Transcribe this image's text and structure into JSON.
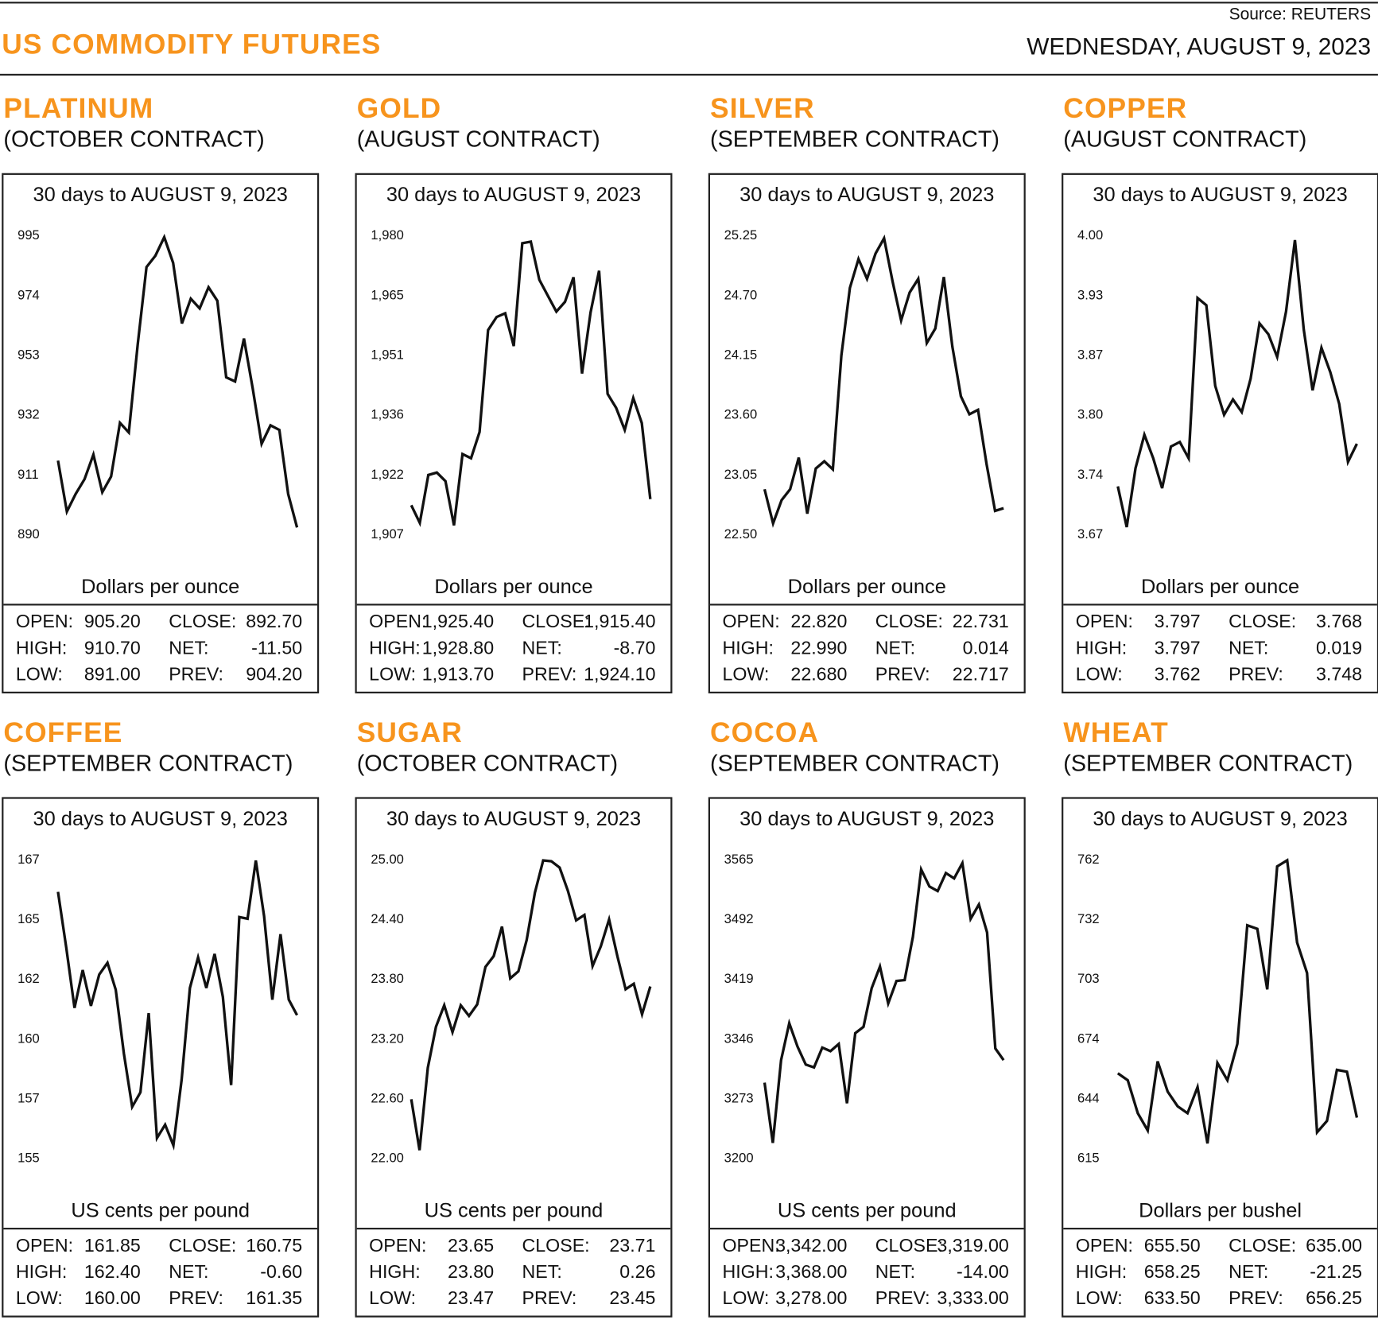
{
  "header": {
    "title": "US COMMODITY FUTURES",
    "source": "Source: REUTERS",
    "date": "WEDNESDAY, AUGUST 9, 2023"
  },
  "labels": {
    "open": "OPEN:",
    "high": "HIGH:",
    "low": "LOW:",
    "close": "CLOSE:",
    "net": "NET:",
    "prev": "PREV:"
  },
  "commodities": [
    {
      "name": "PLATINUM",
      "contract": "(OCTOBER CONTRACT)",
      "stats": {
        "open": "905.20",
        "high": "910.70",
        "low": "891.00",
        "close": "892.70",
        "net": "-11.50",
        "prev": "904.20"
      }
    },
    {
      "name": "GOLD",
      "contract": "(AUGUST CONTRACT)",
      "stats": {
        "open": "1,925.40",
        "high": "1,928.80",
        "low": "1,913.70",
        "close": "1,915.40",
        "net": "-8.70",
        "prev": "1,924.10"
      }
    },
    {
      "name": "SILVER",
      "contract": "(SEPTEMBER CONTRACT)",
      "stats": {
        "open": "22.820",
        "high": "22.990",
        "low": "22.680",
        "close": "22.731",
        "net": "0.014",
        "prev": "22.717"
      }
    },
    {
      "name": "COPPER",
      "contract": "(AUGUST CONTRACT)",
      "stats": {
        "open": "3.797",
        "high": "3.797",
        "low": "3.762",
        "close": "3.768",
        "net": "0.019",
        "prev": "3.748"
      }
    },
    {
      "name": "COFFEE",
      "contract": "(SEPTEMBER CONTRACT)",
      "stats": {
        "open": "161.85",
        "high": "162.40",
        "low": "160.00",
        "close": "160.75",
        "net": "-0.60",
        "prev": "161.35"
      }
    },
    {
      "name": "SUGAR",
      "contract": "(OCTOBER CONTRACT)",
      "stats": {
        "open": "23.65",
        "high": "23.80",
        "low": "23.47",
        "close": "23.71",
        "net": "0.26",
        "prev": "23.45"
      }
    },
    {
      "name": "COCOA",
      "contract": "(SEPTEMBER CONTRACT)",
      "stats": {
        "open": "3,342.00",
        "high": "3,368.00",
        "low": "3,278.00",
        "close": "3,319.00",
        "net": "-14.00",
        "prev": "3,333.00"
      }
    },
    {
      "name": "WHEAT",
      "contract": "(SEPTEMBER CONTRACT)",
      "stats": {
        "open": "655.50",
        "high": "658.25",
        "low": "633.50",
        "close": "635.00",
        "net": "-21.25",
        "prev": "656.25"
      }
    }
  ],
  "chart_data": [
    {
      "type": "line",
      "title": "30 days to AUGUST 9, 2023",
      "ylabel": "Dollars per ounce",
      "yticks": [
        "995",
        "974",
        "953",
        "932",
        "911",
        "890"
      ],
      "ylim": [
        890,
        995
      ],
      "values": [
        915.9,
        898,
        904.2,
        909.4,
        918,
        904.8,
        910.3,
        929.2,
        925.8,
        956.7,
        983.9,
        987.9,
        994.4,
        985.4,
        964.1,
        972.8,
        969.4,
        976.8,
        972.1,
        945.2,
        943.7,
        958.8,
        941.2,
        921.8,
        928.3,
        926.7,
        904.2,
        892.4
      ]
    },
    {
      "type": "line",
      "title": "30 days to AUGUST 9, 2023",
      "ylabel": "Dollars per ounce",
      "yticks": [
        "1,980",
        "1,965",
        "1,951",
        "1,936",
        "1,922",
        "1,907"
      ],
      "ylim": [
        1907,
        1980
      ],
      "values": [
        1914.1,
        1909.8,
        1921.5,
        1922.1,
        1920,
        1909.2,
        1926.6,
        1925.6,
        1932,
        1956.9,
        1960.1,
        1961,
        1953,
        1978.1,
        1978.5,
        1969.2,
        1965.3,
        1961.4,
        1963.8,
        1969.8,
        1946.3,
        1961.2,
        1971.4,
        1941.3,
        1937.9,
        1932.5,
        1940.3,
        1934.2,
        1915.6
      ]
    },
    {
      "type": "line",
      "title": "30 days to AUGUST 9, 2023",
      "ylabel": "Dollars per ounce",
      "yticks": [
        "25.25",
        "24.70",
        "24.15",
        "23.60",
        "23.05",
        "22.50"
      ],
      "ylim": [
        22.5,
        25.25
      ],
      "values": [
        22.915,
        22.6,
        22.815,
        22.915,
        23.206,
        22.69,
        23.106,
        23.172,
        23.098,
        24.145,
        24.768,
        25.034,
        24.851,
        25.084,
        25.225,
        24.826,
        24.469,
        24.726,
        24.851,
        24.261,
        24.394,
        24.868,
        24.228,
        23.771,
        23.605,
        23.646,
        23.148,
        22.716,
        22.74
      ]
    },
    {
      "type": "line",
      "title": "30 days to AUGUST 9, 2023",
      "ylabel": "Dollars per ounce",
      "yticks": [
        "4.00",
        "3.93",
        "3.87",
        "3.80",
        "3.74",
        "3.67"
      ],
      "ylim": [
        3.67,
        4.0
      ],
      "values": [
        3.723,
        3.678,
        3.743,
        3.78,
        3.754,
        3.721,
        3.767,
        3.772,
        3.754,
        3.931,
        3.923,
        3.834,
        3.802,
        3.819,
        3.805,
        3.842,
        3.903,
        3.891,
        3.866,
        3.916,
        3.995,
        3.896,
        3.829,
        3.876,
        3.849,
        3.814,
        3.75,
        3.77
      ]
    },
    {
      "type": "line",
      "title": "30 days to AUGUST 9, 2023",
      "ylabel": "US cents per pound",
      "yticks": [
        "167",
        "165",
        "162",
        "160",
        "157",
        "155"
      ],
      "ylim": [
        155,
        167
      ],
      "values": [
        165.7,
        163.46,
        161.04,
        162.56,
        161.12,
        162.38,
        162.85,
        161.77,
        159.2,
        157.07,
        157.65,
        160.83,
        155.81,
        156.35,
        155.52,
        158.16,
        161.84,
        163.07,
        161.84,
        163.21,
        161.48,
        157.94,
        164.69,
        164.62,
        166.96,
        164.73,
        161.37,
        164.0,
        161.37,
        160.75
      ]
    },
    {
      "type": "line",
      "title": "30 days to AUGUST 9, 2023",
      "ylabel": "US cents per pound",
      "yticks": [
        "25.00",
        "24.40",
        "23.80",
        "23.20",
        "22.60",
        "22.00"
      ],
      "ylim": [
        22.0,
        25.0
      ],
      "values": [
        22.593,
        22.081,
        22.908,
        23.321,
        23.536,
        23.267,
        23.536,
        23.429,
        23.545,
        23.922,
        24.03,
        24.327,
        23.806,
        23.878,
        24.192,
        24.668,
        24.991,
        24.982,
        24.919,
        24.686,
        24.389,
        24.443,
        23.931,
        24.129,
        24.398,
        24.03,
        23.698,
        23.752,
        23.446,
        23.725
      ]
    },
    {
      "type": "line",
      "title": "30 days to AUGUST 9, 2023",
      "ylabel": "US cents per pound",
      "yticks": [
        "3565",
        "3492",
        "3419",
        "3346",
        "3273",
        "3200"
      ],
      "ylim": [
        3200,
        3565
      ],
      "values": [
        3292.4,
        3218.8,
        3319.9,
        3365,
        3336.4,
        3314.4,
        3311.1,
        3335.3,
        3330.9,
        3339.7,
        3267.2,
        3352.9,
        3360.6,
        3407.8,
        3434.2,
        3389.2,
        3416.6,
        3417.7,
        3470.5,
        3552.9,
        3532,
        3526.5,
        3548.5,
        3541.9,
        3560.6,
        3492.5,
        3510,
        3476,
        3334.2,
        3319.9
      ]
    },
    {
      "type": "line",
      "title": "30 days to AUGUST 9, 2023",
      "ylabel": "Dollars per bushel",
      "yticks": [
        "762",
        "732",
        "703",
        "674",
        "644",
        "615"
      ],
      "ylim": [
        615,
        762
      ],
      "values": [
        656.8,
        653.4,
        637.2,
        628.7,
        662.7,
        647.8,
        640.6,
        637.2,
        650,
        622.3,
        661.9,
        653.4,
        671.3,
        729.6,
        727.9,
        698.1,
        758.6,
        761.6,
        721.1,
        706.2,
        627.8,
        633.4,
        658.5,
        657.6,
        635
      ]
    }
  ]
}
